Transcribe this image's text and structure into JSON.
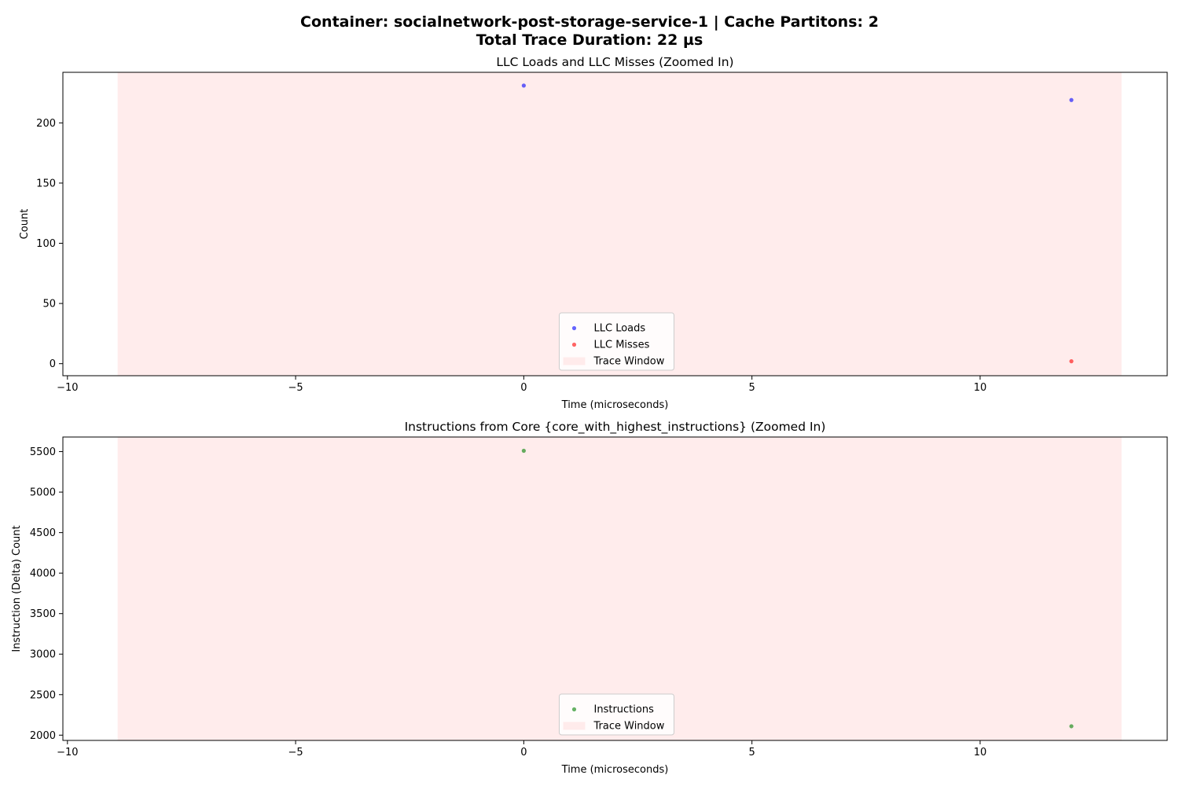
{
  "figure": {
    "title_line1": "Container: socialnetwork-post-storage-service-1 | Cache Partitons: 2",
    "title_line2": "Total Trace Duration: 22 µs"
  },
  "chart_data": [
    {
      "type": "scatter",
      "title": "LLC Loads and LLC Misses (Zoomed In)",
      "xlabel": "Time (microseconds)",
      "ylabel": "Count",
      "xlim": [
        -10.1,
        14.1
      ],
      "ylim": [
        -10,
        242
      ],
      "xticks": [
        -10,
        -5,
        0,
        5,
        10
      ],
      "xtick_labels": [
        "−10",
        "−5",
        "0",
        "5",
        "10"
      ],
      "yticks": [
        0,
        50,
        100,
        150,
        200
      ],
      "ytick_labels": [
        "0",
        "50",
        "100",
        "150",
        "200"
      ],
      "grid": false,
      "legend_position": "lower center",
      "trace_window": {
        "label": "Trace Window",
        "start": -8.9,
        "end": 13.1,
        "color": "#ffe0e0"
      },
      "series": [
        {
          "name": "LLC Loads",
          "color": "#0000ff",
          "x": [
            0,
            12
          ],
          "y": [
            231,
            219
          ]
        },
        {
          "name": "LLC Misses",
          "color": "#ff0000",
          "x": [
            12
          ],
          "y": [
            2
          ]
        }
      ]
    },
    {
      "type": "scatter",
      "title": "Instructions from Core {core_with_highest_instructions} (Zoomed In)",
      "xlabel": "Time (microseconds)",
      "ylabel": "Instruction (Delta) Count",
      "xlim": [
        -10.1,
        14.1
      ],
      "ylim": [
        1935,
        5680
      ],
      "xticks": [
        -10,
        -5,
        0,
        5,
        10
      ],
      "xtick_labels": [
        "−10",
        "−5",
        "0",
        "5",
        "10"
      ],
      "yticks": [
        2000,
        2500,
        3000,
        3500,
        4000,
        4500,
        5000,
        5500
      ],
      "ytick_labels": [
        "2000",
        "2500",
        "3000",
        "3500",
        "4000",
        "4500",
        "5000",
        "5500"
      ],
      "grid": false,
      "legend_position": "lower center",
      "trace_window": {
        "label": "Trace Window",
        "start": -8.9,
        "end": 13.1,
        "color": "#ffe0e0"
      },
      "series": [
        {
          "name": "Instructions",
          "color": "#008000",
          "x": [
            0,
            12
          ],
          "y": [
            5510,
            2110
          ]
        }
      ]
    }
  ]
}
